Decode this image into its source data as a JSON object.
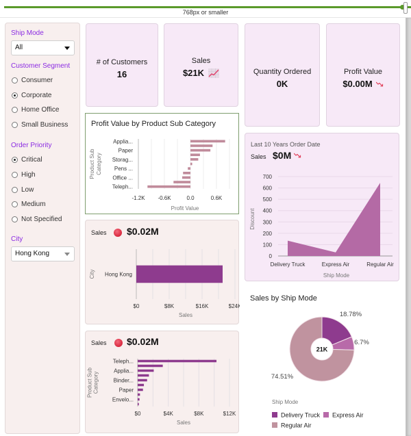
{
  "responsive_bar": {
    "label": "768px or smaller"
  },
  "sidebar": {
    "ship_mode": {
      "title": "Ship Mode",
      "selected": "All"
    },
    "customer_segment": {
      "title": "Customer Segment",
      "options": [
        {
          "label": "Consumer",
          "checked": false
        },
        {
          "label": "Corporate",
          "checked": true
        },
        {
          "label": "Home Office",
          "checked": false
        },
        {
          "label": "Small Business",
          "checked": false
        }
      ]
    },
    "order_priority": {
      "title": "Order Priority",
      "options": [
        {
          "label": "Critical",
          "checked": true
        },
        {
          "label": "High",
          "checked": false
        },
        {
          "label": "Low",
          "checked": false
        },
        {
          "label": "Medium",
          "checked": false
        },
        {
          "label": "Not Specified",
          "checked": false
        }
      ]
    },
    "city": {
      "title": "City",
      "selected": "Hong Kong"
    }
  },
  "kpis": {
    "customers": {
      "title": "# of Customers",
      "value": "16"
    },
    "sales": {
      "title": "Sales",
      "value": "$21K",
      "trend_icon": "trend-up-icon"
    },
    "quantity": {
      "title": "Quantity Ordered",
      "value": "0K"
    },
    "profit": {
      "title": "Profit Value",
      "value": "$0.00M",
      "trend_icon": "trend-down-icon"
    }
  },
  "colors": {
    "accent_purple": "#8b2be2",
    "bar_pink": "#c08b9b",
    "bar_purple": "#8e3b8e",
    "area_purple": "#b46aa5",
    "pie_delivery_truck": "#8e3b8e",
    "pie_express_air": "#b86aa9",
    "pie_regular_air": "#c0939f",
    "status_red": "#d8283e"
  },
  "profit_chart": {
    "title": "Profit Value by Product Sub Category"
  },
  "city_chart": {
    "header_label": "Sales",
    "header_value": "$0.02M"
  },
  "product_chart": {
    "header_label": "Sales",
    "header_value": "$0.02M"
  },
  "area_chart": {
    "subtitle": "Last 10 Years Order Date",
    "header_label": "Sales",
    "header_value": "$0M"
  },
  "pie_chart": {
    "title": "Sales by Ship Mode",
    "center_label": "21K",
    "legend_title": "Ship Mode"
  },
  "chart_data": [
    {
      "id": "profit_by_subcategory",
      "type": "bar",
      "orientation": "horizontal",
      "title": "Profit Value by Product Sub Category",
      "xlabel": "Profit Value",
      "ylabel": "Product Sub Category",
      "categories": [
        "Applia...",
        "",
        "Paper",
        "",
        "Storag...",
        "",
        "Pens ...",
        "",
        "Office ...",
        "",
        "Teleph..."
      ],
      "values": [
        800,
        510,
        460,
        220,
        180,
        40,
        -60,
        -170,
        -190,
        -390,
        -990
      ],
      "xlim": [
        -1200,
        900
      ],
      "xticks": [
        -1200,
        -600,
        0,
        600
      ],
      "xtick_labels": [
        "-1.2K",
        "-0.6K",
        "0.0",
        "0.6K"
      ],
      "grid": true
    },
    {
      "id": "sales_by_city",
      "type": "bar",
      "orientation": "horizontal",
      "xlabel": "Sales",
      "ylabel": "City",
      "categories": [
        "Hong Kong"
      ],
      "values": [
        21000
      ],
      "xlim": [
        0,
        24000
      ],
      "xticks": [
        0,
        8000,
        16000,
        24000
      ],
      "xtick_labels": [
        "$0",
        "$8K",
        "$16K",
        "$24K"
      ],
      "grid": true
    },
    {
      "id": "sales_by_subcategory",
      "type": "bar",
      "orientation": "horizontal",
      "xlabel": "Sales",
      "ylabel": "Product Sub Category",
      "categories": [
        "Teleph...",
        "",
        "Applia...",
        "",
        "Binder...",
        "",
        "Paper",
        "",
        "Envelo...",
        ""
      ],
      "values": [
        10300,
        3280,
        2100,
        1470,
        1230,
        810,
        690,
        300,
        240,
        150
      ],
      "xlim": [
        0,
        12000
      ],
      "xticks": [
        0,
        4000,
        8000,
        12000
      ],
      "xtick_labels": [
        "$0",
        "$4K",
        "$8K",
        "$12K"
      ],
      "grid": true
    },
    {
      "id": "discount_by_ship_mode",
      "type": "area",
      "xlabel": "Ship Mode",
      "ylabel": "Discount",
      "categories": [
        "Delivery Truck",
        "Express Air",
        "Regular Air"
      ],
      "values": [
        135,
        32,
        645
      ],
      "ylim": [
        0,
        700
      ],
      "yticks": [
        0,
        100,
        200,
        300,
        400,
        500,
        600,
        700
      ],
      "grid": true
    },
    {
      "id": "sales_by_ship_mode",
      "type": "pie",
      "donut": true,
      "title": "Sales by Ship Mode",
      "center_label": "21K",
      "legend_title": "Ship Mode",
      "legend_position": "bottom",
      "slices": [
        {
          "label": "Delivery Truck",
          "percent": 18.78,
          "display": "18.78%"
        },
        {
          "label": "Express Air",
          "percent": 6.7,
          "display": "6.7%"
        },
        {
          "label": "Regular Air",
          "percent": 74.51,
          "display": "74.51%"
        }
      ]
    }
  ]
}
